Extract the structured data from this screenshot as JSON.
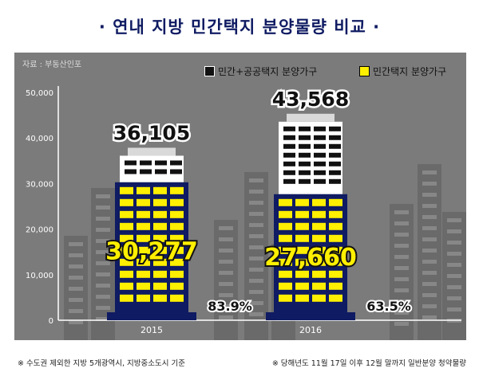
{
  "title": "· 연내 지방 민간택지 분양물량 비교 ·",
  "source": "자료 : 부동산인포",
  "legend": {
    "total": "민간+공공택지 분양가구",
    "private": "민간택지 분양가구"
  },
  "footnotes": {
    "left": "※ 수도권 제외한 지방 5개광역시, 지방중소도시 기준",
    "right": "※ 당해년도 11월 17일 이후 12월 말까지 일반분양 청약물량"
  },
  "colors": {
    "navy": "#0f1b62",
    "yellow": "#ffef00",
    "panel": "#7b7b7b"
  },
  "chart_data": {
    "type": "bar",
    "categories": [
      "2015",
      "2016"
    ],
    "series": [
      {
        "name": "민간+공공택지 분양가구",
        "values": [
          36105,
          43568
        ],
        "labels": [
          "36,105",
          "43,568"
        ]
      },
      {
        "name": "민간택지 분양가구",
        "values": [
          30277,
          27660
        ],
        "labels": [
          "30,277",
          "27,660"
        ]
      }
    ],
    "share_labels": [
      "83.9%",
      "63.5%"
    ],
    "ylim": [
      0,
      50000
    ],
    "yticks": [
      0,
      10000,
      20000,
      30000,
      40000,
      50000
    ],
    "ytick_labels": [
      "0",
      "10,000",
      "20,000",
      "30,000",
      "40,000",
      "50,000"
    ],
    "grid": false,
    "legend_position": "top-right"
  }
}
